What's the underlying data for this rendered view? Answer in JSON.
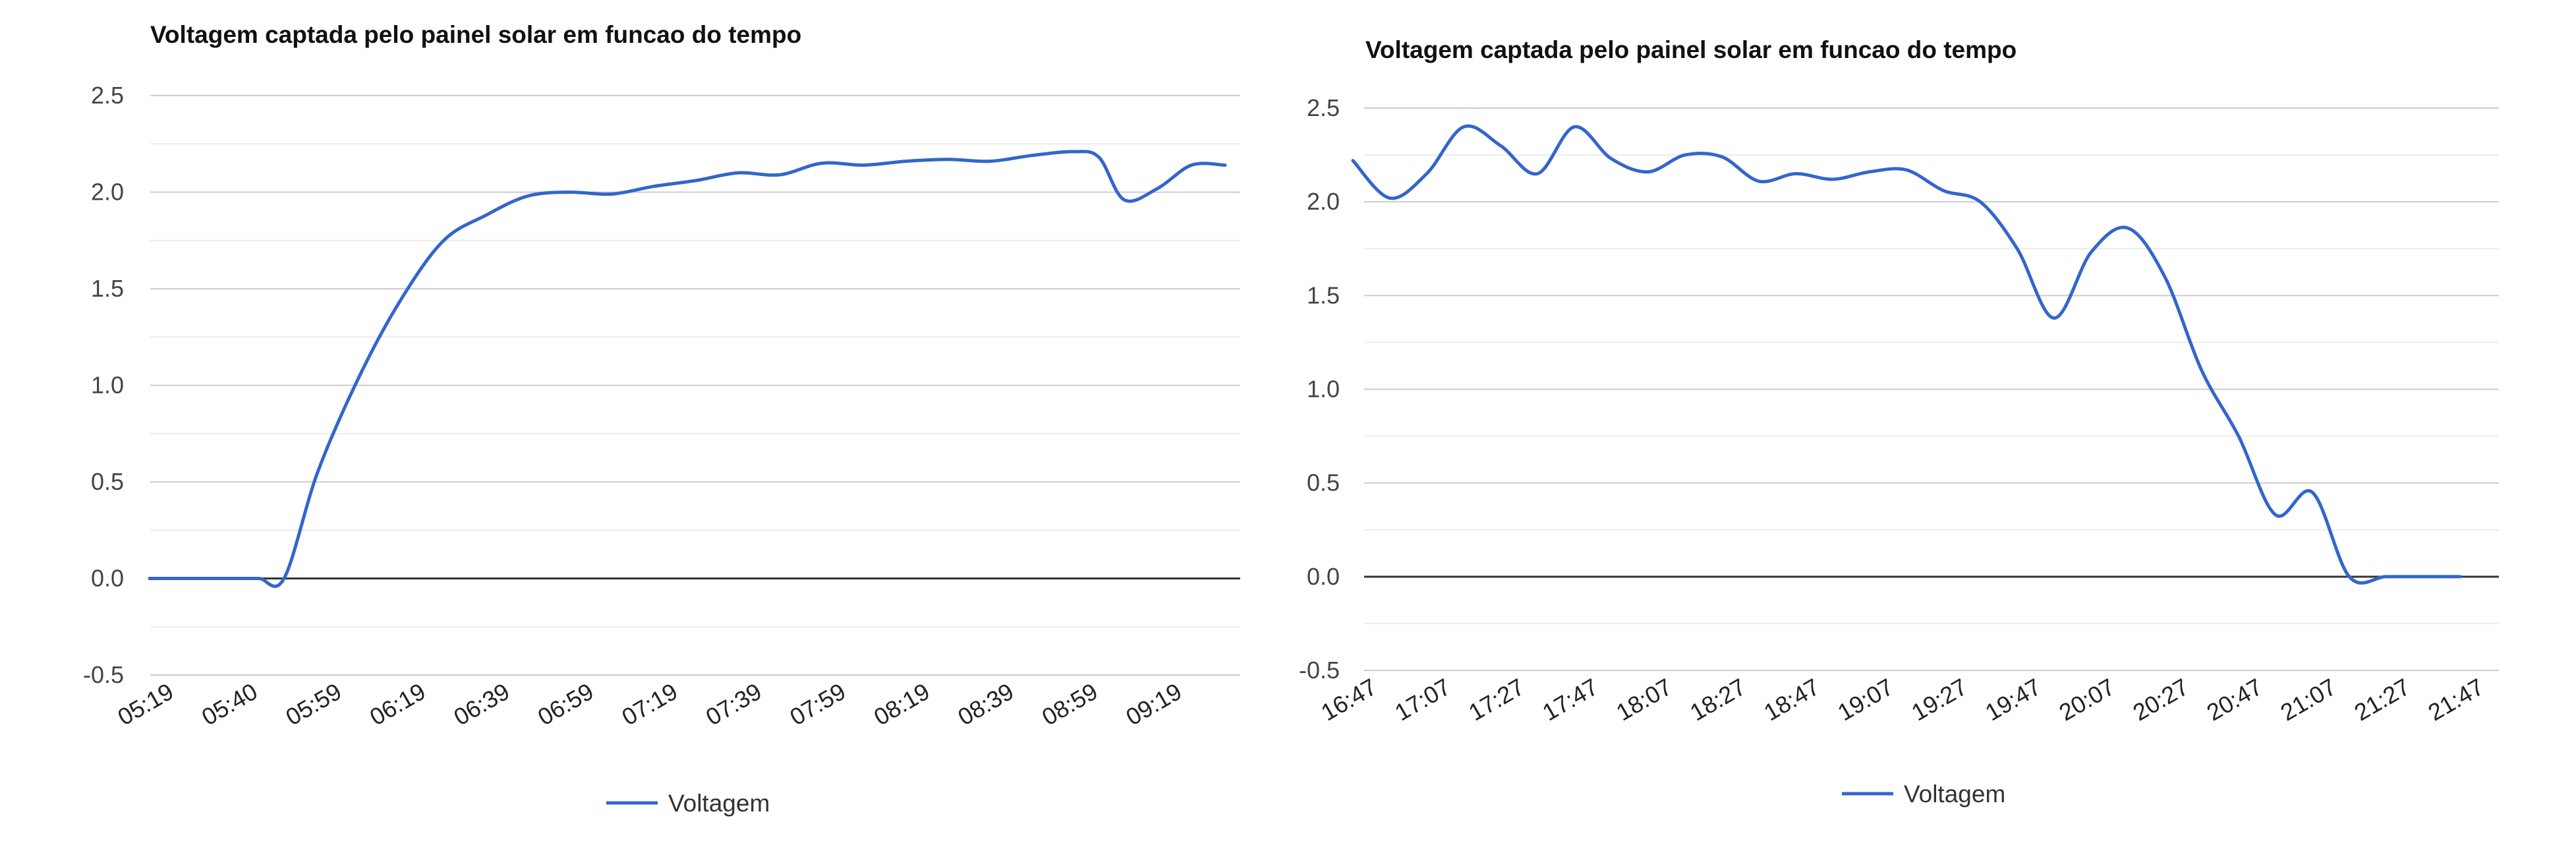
{
  "chart_data": [
    {
      "type": "line",
      "title": "Voltagem captada pelo painel solar em funcao do tempo",
      "xlabel": "",
      "ylabel": "",
      "ylim": [
        -0.5,
        2.5
      ],
      "yticks": [
        "2.5",
        "2.0",
        "1.5",
        "1.0",
        "0.5",
        "0.0",
        "-0.5"
      ],
      "categories": [
        "05:19",
        "05:40",
        "05:59",
        "06:19",
        "06:39",
        "06:59",
        "07:19",
        "07:39",
        "07:59",
        "08:19",
        "08:39",
        "08:59",
        "09:19"
      ],
      "legend": "bottom",
      "grid": true,
      "color": "#3366CC",
      "series": [
        {
          "name": "Voltagem",
          "x": [
            0,
            0.5,
            1,
            1.3,
            1.6,
            2,
            2.5,
            3,
            3.5,
            4,
            4.5,
            5,
            5.5,
            6,
            6.5,
            7,
            7.5,
            8,
            8.5,
            9,
            9.5,
            10,
            10.5,
            11,
            11.3,
            11.6,
            12,
            12.4,
            12.8
          ],
          "values": [
            0.0,
            0.0,
            0.0,
            0.0,
            0.0,
            0.55,
            1.05,
            1.45,
            1.75,
            1.88,
            1.98,
            2.0,
            1.99,
            2.03,
            2.06,
            2.1,
            2.09,
            2.15,
            2.14,
            2.16,
            2.17,
            2.16,
            2.19,
            2.21,
            2.18,
            1.96,
            2.02,
            2.14,
            2.14
          ]
        }
      ]
    },
    {
      "type": "line",
      "title": "Voltagem captada pelo painel solar em funcao do tempo",
      "xlabel": "",
      "ylabel": "",
      "ylim": [
        -0.5,
        2.5
      ],
      "yticks": [
        "2.5",
        "2.0",
        "1.5",
        "1.0",
        "0.5",
        "0.0",
        "-0.5"
      ],
      "categories": [
        "16:47",
        "17:07",
        "17:27",
        "17:47",
        "18:07",
        "18:27",
        "18:47",
        "19:07",
        "19:27",
        "19:47",
        "20:07",
        "20:27",
        "20:47",
        "21:07",
        "21:27",
        "21:47"
      ],
      "legend": "bottom",
      "grid": true,
      "color": "#3366CC",
      "series": [
        {
          "name": "Voltagem",
          "x": [
            0,
            0.5,
            1,
            1.5,
            2,
            2.5,
            3,
            3.5,
            4,
            4.5,
            5,
            5.5,
            6,
            6.5,
            7,
            7.5,
            8,
            8.5,
            9,
            9.5,
            10,
            10.5,
            11,
            11.5,
            12,
            12.5,
            13,
            13.5,
            14,
            14.5,
            15
          ],
          "values": [
            2.22,
            2.02,
            2.15,
            2.4,
            2.3,
            2.15,
            2.4,
            2.23,
            2.16,
            2.25,
            2.24,
            2.11,
            2.15,
            2.12,
            2.16,
            2.17,
            2.06,
            2.0,
            1.75,
            1.38,
            1.73,
            1.86,
            1.6,
            1.1,
            0.75,
            0.33,
            0.45,
            0.0,
            0.0,
            0.0,
            0.0
          ]
        }
      ]
    }
  ]
}
